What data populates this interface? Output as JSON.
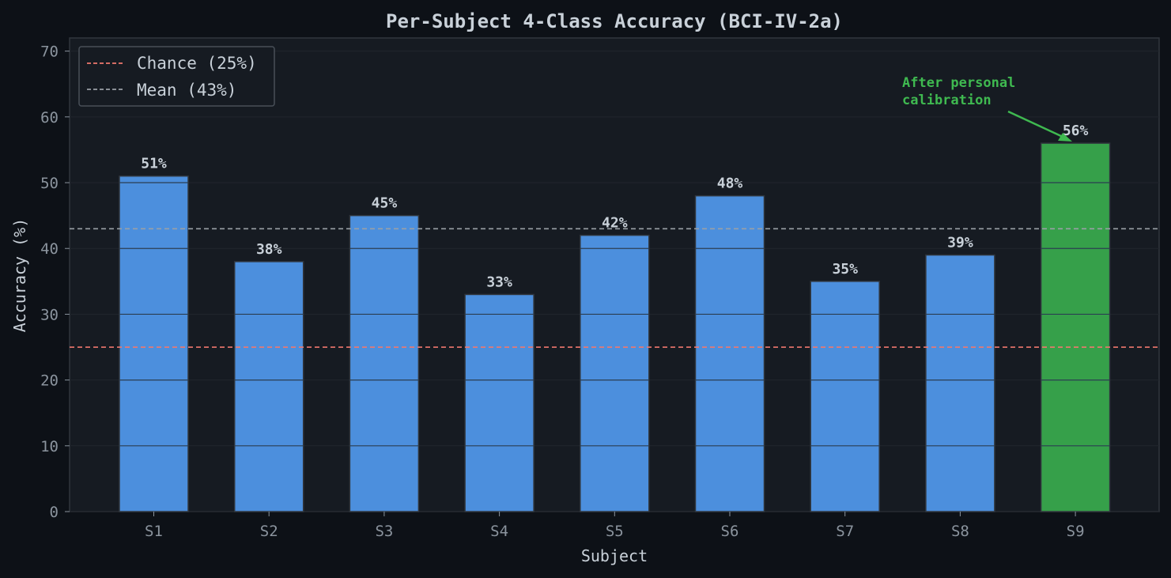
{
  "chart_data": {
    "type": "bar",
    "title": "Per-Subject 4-Class Accuracy (BCI-IV-2a)",
    "xlabel": "Subject",
    "ylabel": "Accuracy (%)",
    "ylim": [
      0,
      72
    ],
    "yticks": [
      0,
      10,
      20,
      30,
      40,
      50,
      60,
      70
    ],
    "categories": [
      "S1",
      "S2",
      "S3",
      "S4",
      "S5",
      "S6",
      "S7",
      "S8",
      "S9"
    ],
    "values": [
      51,
      38,
      45,
      33,
      42,
      48,
      35,
      39,
      56
    ],
    "data_labels": [
      "51%",
      "38%",
      "45%",
      "33%",
      "42%",
      "48%",
      "35%",
      "39%",
      "56%"
    ],
    "bar_colors": [
      "#4c8fdd",
      "#4c8fdd",
      "#4c8fdd",
      "#4c8fdd",
      "#4c8fdd",
      "#4c8fdd",
      "#4c8fdd",
      "#4c8fdd",
      "#36a04a"
    ],
    "reference_lines": [
      {
        "label": "Chance (25%)",
        "value": 25,
        "color": "#f0786e",
        "style": "dashed"
      },
      {
        "label": "Mean (43%)",
        "value": 43,
        "color": "#9aa0a6",
        "style": "dashed"
      }
    ],
    "annotation": {
      "text_lines": [
        "After personal",
        "calibration"
      ],
      "target": "S9",
      "color": "#3fb950"
    },
    "legend_position": "top-left",
    "grid": true,
    "colors": {
      "background": "#0d1117",
      "plot_bg": "#161b22",
      "text": "#c9d1d9",
      "tick": "#8b949e"
    }
  }
}
